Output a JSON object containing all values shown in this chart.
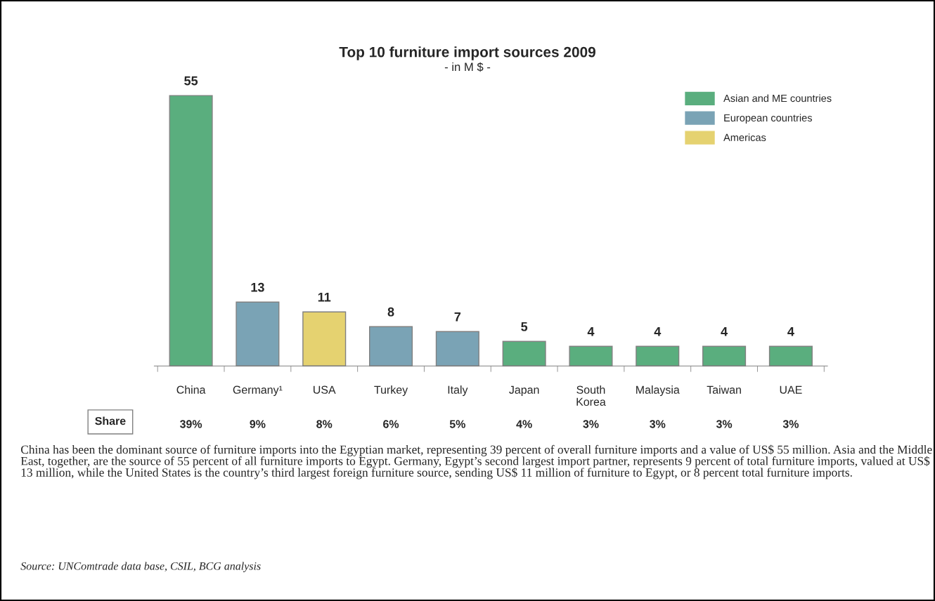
{
  "chart_data": {
    "type": "bar",
    "title": "Top 10 furniture import sources 2009",
    "subtitle": "- in M $ -",
    "categories": [
      "China",
      "Germany¹",
      "USA",
      "Turkey",
      "Italy",
      "Japan",
      "South\nKorea",
      "Malaysia",
      "Taiwan",
      "UAE"
    ],
    "series": [
      {
        "name": "Asian and ME countries",
        "color": "#5aae7e",
        "values": [
          55,
          null,
          null,
          null,
          null,
          5,
          4,
          4,
          4,
          4
        ]
      },
      {
        "name": "European countries",
        "color": "#7aa3b5",
        "values": [
          null,
          13,
          null,
          8,
          7,
          null,
          null,
          null,
          null,
          null
        ]
      },
      {
        "name": "Americas",
        "color": "#e5d270",
        "values": [
          null,
          null,
          11,
          null,
          null,
          null,
          null,
          null,
          null,
          null
        ]
      }
    ],
    "data_labels": true,
    "legend": "top right",
    "grid": false,
    "annotations": [
      "Share",
      "39%",
      "9%",
      "8%",
      "6%",
      "5%",
      "4%",
      "3%",
      "3%",
      "3%",
      "3%",
      "China has been the dominant source of furniture imports into the Egyptian market, representing 39 percent of overall furniture imports and a value of US$ 55 million. Asia and the Middle East, together, are the source of 55 percent of all furniture imports to Egypt. Germany, Egypt’s second largest import partner, represents 9 percent of total furniture imports, valued at US$ 13 million, while the United States is the country’s third largest foreign furniture source, sending US$ 11 million of furniture to Egypt, or 8 percent total furniture imports.",
      "Source: UNComtrade data base, CSIL, BCG analysis"
    ]
  }
}
